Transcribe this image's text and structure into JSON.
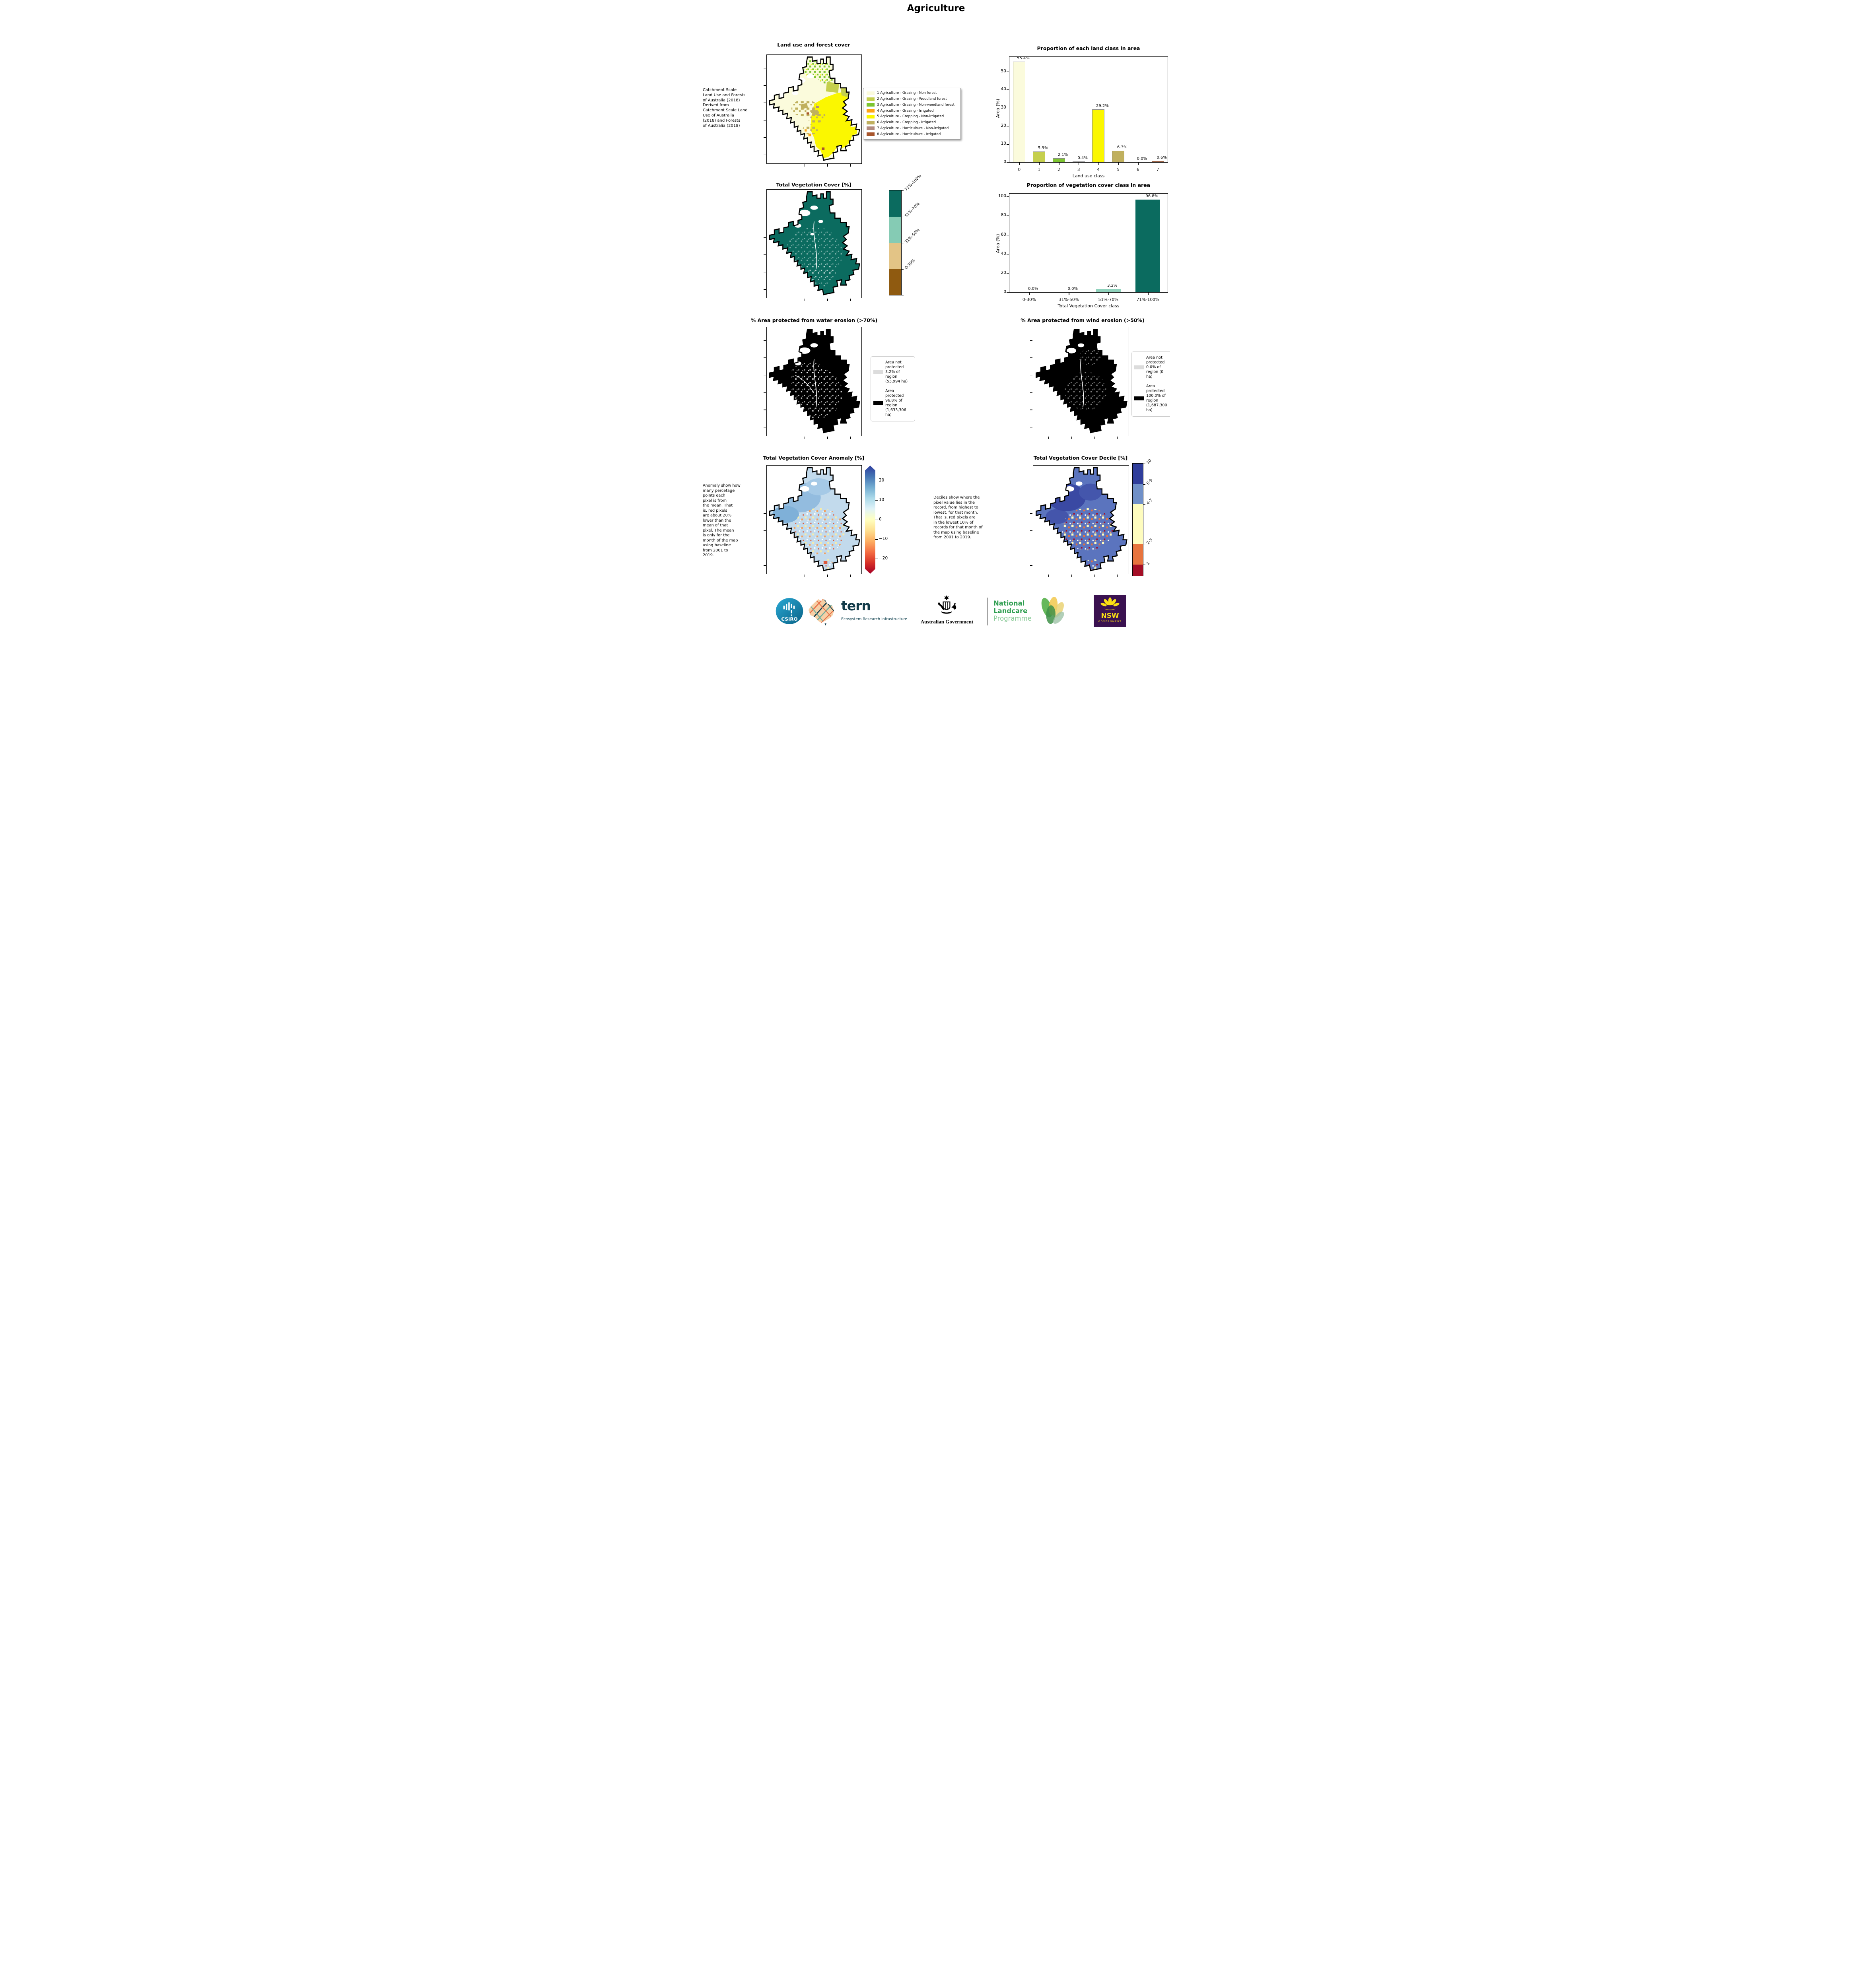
{
  "page_title": "Agriculture",
  "panels": {
    "land_use": {
      "title": "Land use and forest cover",
      "description": " Catchment Scale\nLand Use and Forests\nof Australia (2018)\nDerived from\nCatchment Scale Land\nUse of Australia\n(2018) and Forests\nof Australia (2018)",
      "legend": [
        {
          "label": "1 Agriculture - Grazing - Non forest",
          "color": "#FBFBDC"
        },
        {
          "label": "2 Agriculture - Grazing - Woodland forest",
          "color": "#C5CF4D"
        },
        {
          "label": "3 Agriculture - Grazing - Non-woodland forest",
          "color": "#7DC530"
        },
        {
          "label": "4 Agriculture - Grazing - Irrigated",
          "color": "#FFA414"
        },
        {
          "label": "5 Agriculture - Cropping - Non-irrigated",
          "color": "#FBF700"
        },
        {
          "label": "6 Agriculture - Cropping - Irrigated",
          "color": "#C0B05E"
        },
        {
          "label": "7 Agriculture - Horticulture - Non-irrigated",
          "color": "#B18B80"
        },
        {
          "label": "8 Agriculture - Horticulture - Irrigated",
          "color": "#A8562C"
        }
      ]
    },
    "veg_cover": {
      "title": "Total Vegetation Cover [%]",
      "colorbar": [
        {
          "label": "71%-100%",
          "color": "#0B6B5F"
        },
        {
          "label": "51%-70%",
          "color": "#85CBB4"
        },
        {
          "label": "31%-50%",
          "color": "#E3C486"
        },
        {
          "label": "0-30%",
          "color": "#8F5A10"
        }
      ]
    },
    "water_erosion": {
      "title": "% Area protected from water erosion (>70%)",
      "legend": [
        {
          "label": "Area not protected 3.2% of region (53,994 ha)",
          "color": "#DCDCDC"
        },
        {
          "label": "Area protected 96.8% of region (1,633,306 ha)",
          "color": "#000000"
        }
      ]
    },
    "wind_erosion": {
      "title": "% Area protected from wind erosion (>50%)",
      "legend": [
        {
          "label": "Area not protected 0.0% of region (0 ha)",
          "color": "#DCDCDC"
        },
        {
          "label": "Area protected 100.0% of region (1,687,300 ha)",
          "color": "#000000"
        }
      ]
    },
    "anomaly": {
      "title": "Total Vegetation Cover Anomaly [%]",
      "description": "Anomaly show how\nmany percetage\npoints each\npixel is from\nthe mean. That\nis, red pixels\nare about 20%\nlower than the\nmean of that\npixel. The mean\nis only for the\nmonth of the map\nusing baseline\nfrom 2001 to\n2019.",
      "colorbar_ticks": [
        "20",
        "10",
        "0",
        "−10",
        "−20"
      ],
      "colorbar_gradient": [
        "#2F3E9E",
        "#4575B4",
        "#74ADD1",
        "#ABD9E9",
        "#E0F3F8",
        "#FFFFBF",
        "#FEE090",
        "#FDAE61",
        "#F46D43",
        "#D73027",
        "#A50026"
      ]
    },
    "decile": {
      "title": "Total Vegetation Cover Decile [%]",
      "description": "Deciles show where the\npixel value lies in the\nrecord, from highest to\nlowest, for that month.\nThat is, red pixels are\nin the lowest 10% of\nrecords for that month of\nthe map using baseline\nfrom 2001 to 2019.",
      "colorbar": [
        {
          "label": "10",
          "color": "#2F3D9B",
          "frac": 18.4
        },
        {
          "label": "8-9",
          "color": "#7090C8",
          "frac": 17.6
        },
        {
          "label": "4-7",
          "color": "#FEFCBE",
          "frac": 35.5
        },
        {
          "label": "2-3",
          "color": "#E7743E",
          "frac": 18.4
        },
        {
          "label": "1",
          "color": "#A40E26",
          "frac": 10.1
        }
      ]
    }
  },
  "chart_data": [
    {
      "type": "bar",
      "title": "Proportion of each land class in area",
      "categories": [
        "0",
        "1",
        "2",
        "3",
        "4",
        "5",
        "6",
        "7"
      ],
      "values": [
        55.4,
        5.9,
        2.1,
        0.4,
        29.2,
        6.3,
        0.0,
        0.6
      ],
      "labels": [
        "55.4%",
        "5.9%",
        "2.1%",
        "0.4%",
        "29.2%",
        "6.3%",
        "0.0%",
        "0.6%"
      ],
      "colors": [
        "#FBFBDC",
        "#C5CF4D",
        "#7DC530",
        "#FFA414",
        "#FBF700",
        "#C0B05E",
        "#B18B80",
        "#A8562C"
      ],
      "bar_edge": "#8A8A8A",
      "xlabel": "Land use class",
      "ylabel": "Area (%)",
      "ylim": [
        0,
        58
      ],
      "yticks": [
        0,
        10,
        20,
        30,
        40,
        50
      ],
      "grid": false,
      "legend_position": "none"
    },
    {
      "type": "bar",
      "title": "Proportion of vegetation cover class in area",
      "categories": [
        "0-30%",
        "31%-50%",
        "51%-70%",
        "71%-100%"
      ],
      "values": [
        0.0,
        0.0,
        3.2,
        96.8
      ],
      "labels": [
        "0.0%",
        "0.0%",
        "3.2%",
        "96.8%"
      ],
      "colors": [
        "#8F5A10",
        "#E3C486",
        "#8FD2BC",
        "#0B6B5F"
      ],
      "bar_edge": null,
      "xlabel": "Total Vegetation Cover class",
      "ylabel": "Area (%)",
      "ylim": [
        0,
        103
      ],
      "yticks": [
        0,
        20,
        40,
        60,
        80,
        100
      ],
      "grid": false,
      "legend_position": "none"
    }
  ],
  "logos": {
    "csiro": "CSIRO",
    "tern": "tern",
    "tern_sub": "Ecosystem Research Infrastructure",
    "aus_gov": "Australian Government",
    "landcare": {
      "l1": "National",
      "l2": "Landcare",
      "l3": "Programme"
    },
    "nsw": {
      "name": "NSW",
      "sub": "GOVERNMENT"
    }
  }
}
